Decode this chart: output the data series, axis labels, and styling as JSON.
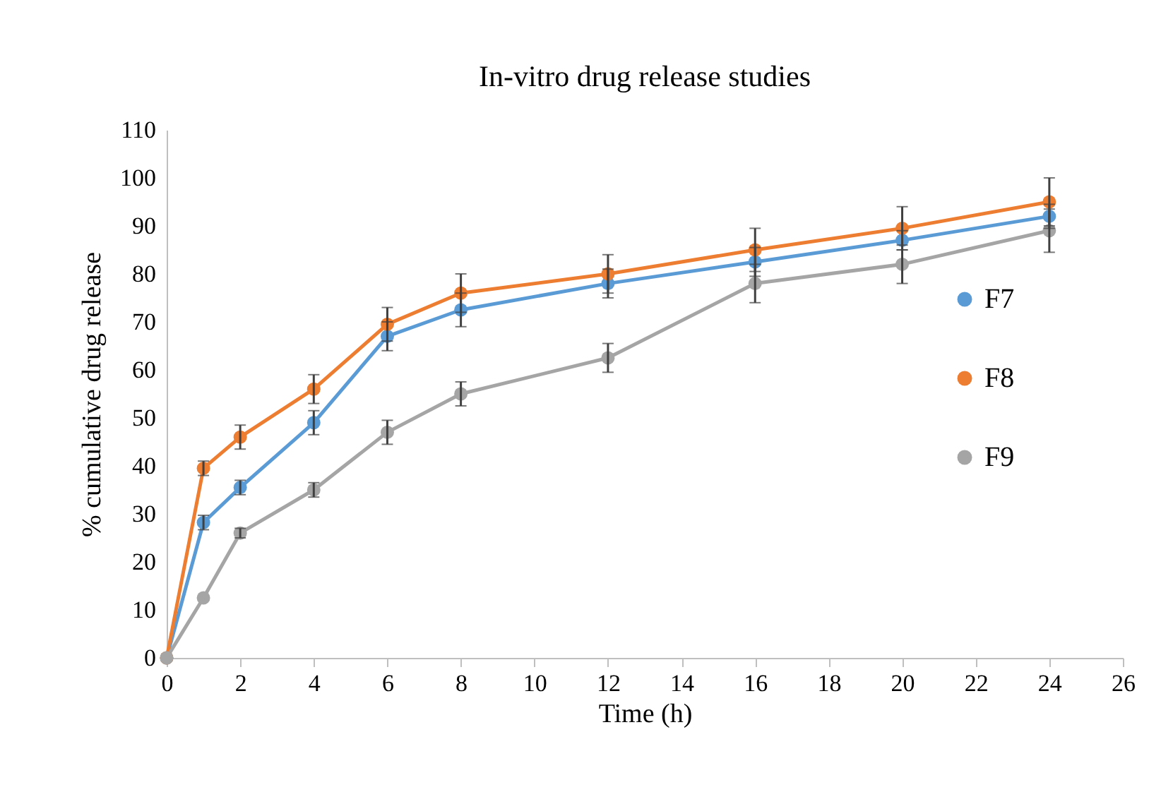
{
  "chart_data": {
    "type": "line",
    "title": "In-vitro  drug release studies",
    "xlabel": "Time (h)",
    "ylabel": "% cumulative drug release",
    "x": [
      0,
      1,
      2,
      4,
      6,
      8,
      12,
      16,
      20,
      24
    ],
    "series": [
      {
        "name": "F7",
        "color": "#5b9bd5",
        "values": [
          0,
          28.2,
          35.5,
          49,
          67,
          72.5,
          78,
          82.5,
          87,
          92
        ],
        "errors": [
          null,
          1.5,
          1.5,
          2.5,
          3,
          3.5,
          3,
          3,
          2,
          2.5
        ]
      },
      {
        "name": "F8",
        "color": "#ed7d31",
        "values": [
          0,
          39.5,
          46,
          56,
          69.5,
          76,
          80,
          85,
          89.5,
          95
        ],
        "errors": [
          null,
          1.5,
          2.5,
          3,
          3.5,
          4,
          4,
          4.5,
          4.5,
          5
        ]
      },
      {
        "name": "F9",
        "color": "#a5a5a5",
        "values": [
          0,
          12.5,
          26,
          35,
          47,
          55,
          62.5,
          78,
          82,
          89
        ],
        "errors": [
          null,
          null,
          1,
          1.5,
          2.5,
          2.5,
          3,
          4,
          4,
          4.5
        ]
      }
    ],
    "xlim": [
      0,
      26
    ],
    "xticks": [
      0,
      2,
      4,
      6,
      8,
      10,
      12,
      14,
      16,
      18,
      20,
      22,
      24,
      26
    ],
    "ylim": [
      0,
      110
    ],
    "yticks": [
      0,
      10,
      20,
      30,
      40,
      50,
      60,
      70,
      80,
      90,
      100,
      110
    ],
    "grid": false,
    "legend": "right",
    "marker": "circle",
    "line_style": "solid"
  }
}
